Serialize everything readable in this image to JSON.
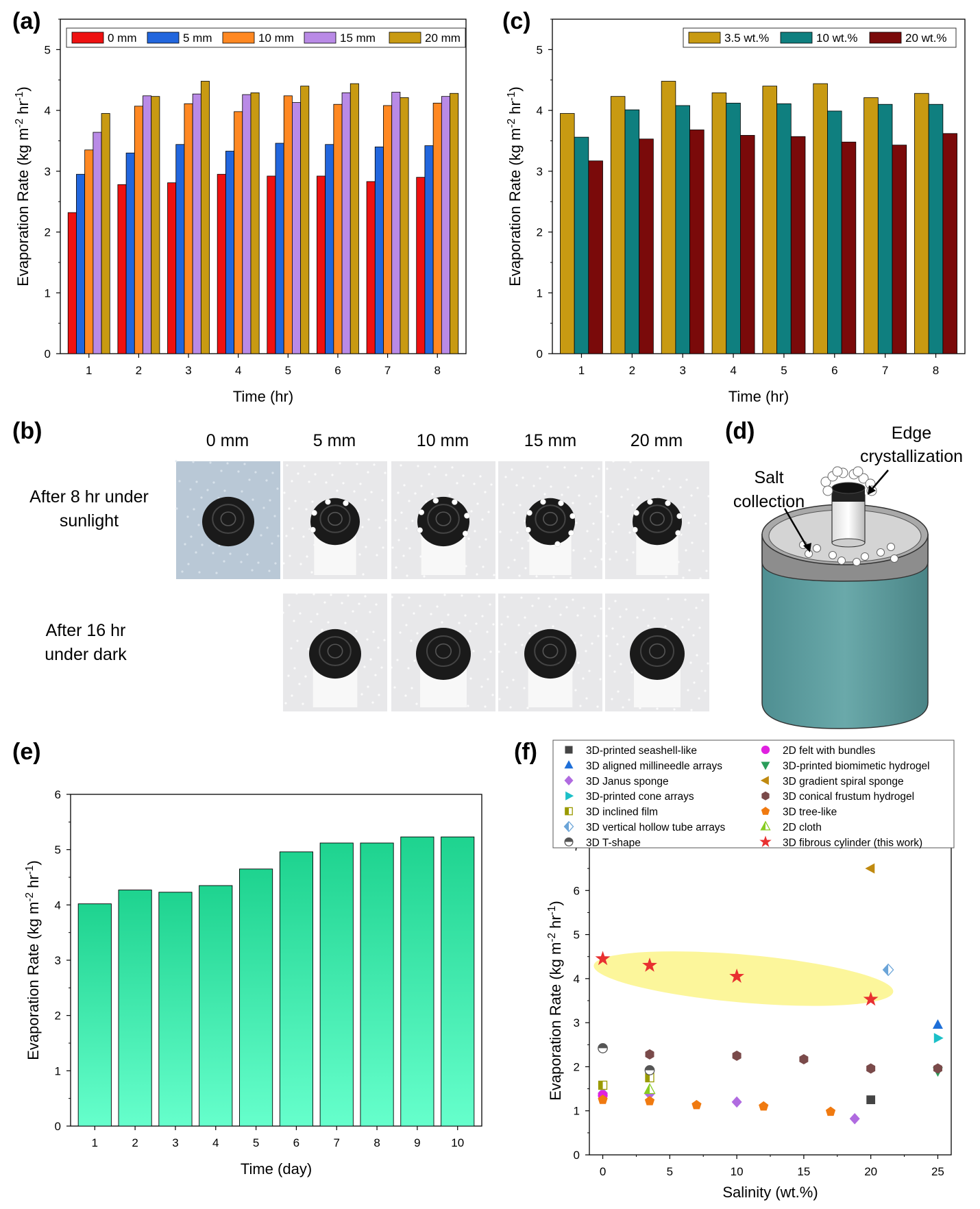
{
  "panels": {
    "a": "(a)",
    "b": "(b)",
    "c": "(c)",
    "d": "(d)",
    "e": "(e)",
    "f": "(f)"
  },
  "colors": {
    "0 mm": "#ee1111",
    "5 mm": "#2266dd",
    "10 mm": "#ff8822",
    "15 mm": "#b98ae6",
    "20 mm": "#c89a12",
    "3.5 wt.%": "#c89a12",
    "10 wt.%": "#0f7f7f",
    "20 wt.%": "#7a0a0a",
    "green_top": "#1ed38f",
    "green_bottom": "#66ffcc"
  },
  "chart_data": [
    {
      "id": "a",
      "type": "bar",
      "xlabel": "Time (hr)",
      "ylabel": "Evaporation Rate (kg m-2 hr-1)",
      "ylim": [
        0,
        5.5
      ],
      "yticks": [
        "0",
        "1",
        "2",
        "3",
        "4",
        "5"
      ],
      "categories": [
        "1",
        "2",
        "3",
        "4",
        "5",
        "6",
        "7",
        "8"
      ],
      "legend_position": "top-right",
      "series": [
        {
          "name": "0 mm",
          "values": [
            2.32,
            2.78,
            2.81,
            2.95,
            2.92,
            2.92,
            2.83,
            2.9
          ]
        },
        {
          "name": "5 mm",
          "values": [
            2.95,
            3.3,
            3.44,
            3.33,
            3.46,
            3.44,
            3.4,
            3.42
          ]
        },
        {
          "name": "10 mm",
          "values": [
            3.35,
            4.07,
            4.11,
            3.98,
            4.24,
            4.1,
            4.08,
            4.12
          ]
        },
        {
          "name": "15 mm",
          "values": [
            3.64,
            4.24,
            4.27,
            4.26,
            4.13,
            4.29,
            4.3,
            4.23
          ]
        },
        {
          "name": "20 mm",
          "values": [
            3.95,
            4.23,
            4.48,
            4.29,
            4.4,
            4.44,
            4.21,
            4.28
          ]
        }
      ]
    },
    {
      "id": "c",
      "type": "bar",
      "xlabel": "Time (hr)",
      "ylabel": "Evaporation Rate (kg m-2 hr-1)",
      "ylim": [
        0,
        5.5
      ],
      "yticks": [
        "0",
        "1",
        "2",
        "3",
        "4",
        "5"
      ],
      "categories": [
        "1",
        "2",
        "3",
        "4",
        "5",
        "6",
        "7",
        "8"
      ],
      "legend_position": "top-right",
      "series": [
        {
          "name": "3.5 wt.%",
          "values": [
            3.95,
            4.23,
            4.48,
            4.29,
            4.4,
            4.44,
            4.21,
            4.28
          ]
        },
        {
          "name": "10 wt.%",
          "values": [
            3.56,
            4.01,
            4.08,
            4.12,
            4.11,
            3.99,
            4.1,
            4.1
          ]
        },
        {
          "name": "20 wt.%",
          "values": [
            3.17,
            3.53,
            3.68,
            3.59,
            3.57,
            3.48,
            3.43,
            3.62
          ]
        }
      ]
    },
    {
      "id": "e",
      "type": "bar",
      "xlabel": "Time (day)",
      "ylabel": "Evaporation Rate (kg m-2 hr-1)",
      "ylim": [
        0,
        6
      ],
      "yticks": [
        "0",
        "1",
        "2",
        "3",
        "4",
        "5",
        "6"
      ],
      "categories": [
        "1",
        "2",
        "3",
        "4",
        "5",
        "6",
        "7",
        "8",
        "9",
        "10"
      ],
      "values": [
        4.02,
        4.27,
        4.23,
        4.35,
        4.65,
        4.96,
        5.12,
        5.12,
        5.23,
        5.23
      ]
    },
    {
      "id": "f",
      "type": "scatter",
      "xlabel": "Salinity (wt.%)",
      "ylabel": "Evaporation Rate (kg m-2 hr-1)",
      "xlim": [
        -1,
        26
      ],
      "ylim": [
        0,
        7
      ],
      "xticks": [
        "0",
        "5",
        "10",
        "15",
        "20",
        "25"
      ],
      "yticks": [
        "0",
        "1",
        "2",
        "3",
        "4",
        "5",
        "6",
        "7"
      ],
      "legend_position": "top",
      "series": [
        {
          "name": "3D-printed seashell-like",
          "marker": "square",
          "color": "#444444",
          "points": [
            [
              3.5,
              1.8
            ],
            [
              20,
              1.25
            ]
          ]
        },
        {
          "name": "3D aligned millineedle arrays",
          "marker": "triangle-up",
          "color": "#1e6fd8",
          "points": [
            [
              25,
              2.95
            ]
          ]
        },
        {
          "name": "3D Janus sponge",
          "marker": "diamond",
          "color": "#b06be0",
          "points": [
            [
              0,
              1.4
            ],
            [
              3.5,
              1.38
            ],
            [
              10,
              1.2
            ],
            [
              18.8,
              0.82
            ]
          ]
        },
        {
          "name": "3D-printed cone arrays",
          "marker": "triangle-right",
          "color": "#1cc0c8",
          "points": [
            [
              25,
              2.65
            ]
          ]
        },
        {
          "name": "3D inclined film",
          "marker": "half-square",
          "color": "#9a9a00",
          "points": [
            [
              0,
              1.58
            ],
            [
              3.5,
              1.75
            ]
          ]
        },
        {
          "name": "3D vertical hollow tube arrays",
          "marker": "half-diamond",
          "color": "#6aa4d8",
          "points": [
            [
              21.3,
              4.2
            ]
          ]
        },
        {
          "name": "3D T-shape",
          "marker": "half-circle",
          "color": "#555555",
          "points": [
            [
              0,
              2.42
            ],
            [
              3.5,
              1.92
            ]
          ]
        },
        {
          "name": "2D felt with bundles",
          "marker": "circle",
          "color": "#e020e0",
          "points": [
            [
              0,
              1.35
            ]
          ]
        },
        {
          "name": "3D-printed biomimetic hydrogel",
          "marker": "triangle-down",
          "color": "#2a9d5a",
          "points": [
            [
              25,
              1.9
            ]
          ]
        },
        {
          "name": "3D gradient spiral sponge",
          "marker": "triangle-left",
          "color": "#c08a10",
          "points": [
            [
              20,
              6.5
            ]
          ]
        },
        {
          "name": "3D conical frustum hydrogel",
          "marker": "hexagon",
          "color": "#7a4a4a",
          "points": [
            [
              3.5,
              2.28
            ],
            [
              10,
              2.25
            ],
            [
              15,
              2.17
            ],
            [
              20,
              1.96
            ],
            [
              25,
              1.96
            ]
          ]
        },
        {
          "name": "3D tree-like",
          "marker": "pentagon",
          "color": "#f07a10",
          "points": [
            [
              0,
              1.25
            ],
            [
              3.5,
              1.22
            ],
            [
              7,
              1.13
            ],
            [
              12,
              1.1
            ],
            [
              17,
              0.98
            ]
          ]
        },
        {
          "name": "2D cloth",
          "marker": "half-triangle",
          "color": "#88cc22",
          "points": [
            [
              3.5,
              1.48
            ]
          ]
        },
        {
          "name": "3D fibrous cylinder (this work)",
          "marker": "star",
          "color": "#e83030",
          "points": [
            [
              0,
              4.45
            ],
            [
              3.5,
              4.3
            ],
            [
              10,
              4.05
            ],
            [
              20,
              3.53
            ]
          ]
        }
      ]
    }
  ],
  "panel_b": {
    "columns": [
      "0 mm",
      "5 mm",
      "10 mm",
      "15 mm",
      "20 mm"
    ],
    "row1_label_line1": "After 8 hr under",
    "row1_label_line2": "sunlight",
    "row2_label_line1": "After 16 hr",
    "row2_label_line2": "under dark"
  },
  "panel_d": {
    "edge_line1": "Edge",
    "edge_line2": "crystallization",
    "salt_line1": "Salt",
    "salt_line2": "collection"
  }
}
